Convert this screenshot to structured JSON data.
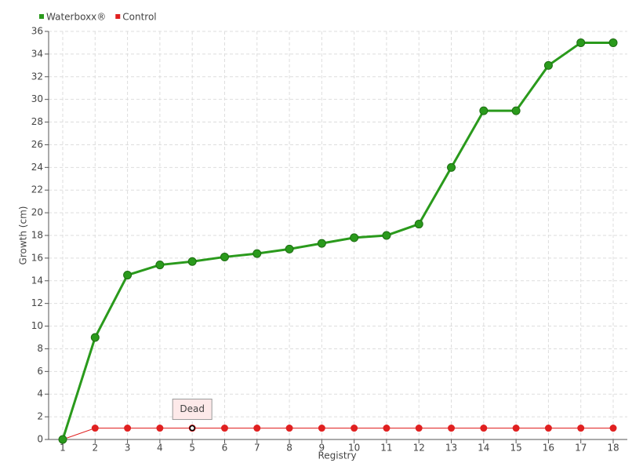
{
  "chart_data": {
    "type": "line",
    "x_label": "Registry",
    "y_label": "Growth (cm)",
    "categories": [
      "1",
      "2",
      "3",
      "4",
      "5",
      "6",
      "7",
      "8",
      "9",
      "10",
      "11",
      "12",
      "13",
      "14",
      "15",
      "16",
      "17",
      "18"
    ],
    "series": [
      {
        "name": "Waterboxx®",
        "color": "#2a9a1c",
        "values": [
          0,
          9,
          14.5,
          15.4,
          15.7,
          16.1,
          16.4,
          16.8,
          17.3,
          17.8,
          18,
          19,
          24,
          29,
          29,
          33,
          35,
          35
        ]
      },
      {
        "name": "Control",
        "color": "#e02020",
        "values": [
          0,
          1,
          1,
          1,
          1,
          1,
          1,
          1,
          1,
          1,
          1,
          1,
          1,
          1,
          1,
          1,
          1,
          1
        ]
      }
    ],
    "annotations": [
      {
        "text": "Dead",
        "series": "Control",
        "x": "5"
      }
    ],
    "ylim": [
      0,
      36
    ],
    "yticks": [
      0,
      2,
      4,
      6,
      8,
      10,
      12,
      14,
      16,
      18,
      20,
      22,
      24,
      26,
      28,
      30,
      32,
      34,
      36
    ],
    "grid": true,
    "legend": "top-left"
  }
}
